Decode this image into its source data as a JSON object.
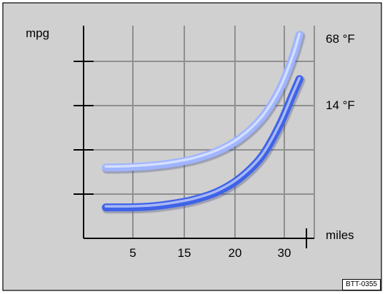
{
  "figure_id": "BTT-0355",
  "colors": {
    "frame_bg": "#d0d0d0",
    "grid": "#8f8f8f",
    "axis": "#000000",
    "warm_curve": "#9fb5ff",
    "cold_curve": "#3f63e8"
  },
  "chart_data": {
    "type": "line",
    "title": "",
    "xlabel": "miles",
    "ylabel": "mpg",
    "x_ticks": [
      "5",
      "15",
      "20",
      "30"
    ],
    "grid": true,
    "legend": "labels at right end of curves",
    "series": [
      {
        "name": "68 °F",
        "color": "#9fb5ff",
        "points": [
          [
            0.5,
            1.6
          ],
          [
            1,
            1.61
          ],
          [
            1.5,
            1.64
          ],
          [
            2,
            1.7
          ],
          [
            2.5,
            1.8
          ],
          [
            3,
            1.97
          ],
          [
            3.5,
            2.25
          ],
          [
            4,
            2.72
          ],
          [
            4.4,
            3.35
          ],
          [
            4.7,
            4.1
          ],
          [
            4.85,
            4.6
          ]
        ]
      },
      {
        "name": "14 °F",
        "color": "#3f63e8",
        "points": [
          [
            0.5,
            0.7
          ],
          [
            1,
            0.7
          ],
          [
            1.5,
            0.72
          ],
          [
            2,
            0.78
          ],
          [
            2.5,
            0.88
          ],
          [
            3,
            1.05
          ],
          [
            3.5,
            1.35
          ],
          [
            4,
            1.85
          ],
          [
            4.4,
            2.55
          ],
          [
            4.7,
            3.25
          ],
          [
            4.85,
            3.6
          ]
        ]
      }
    ]
  }
}
